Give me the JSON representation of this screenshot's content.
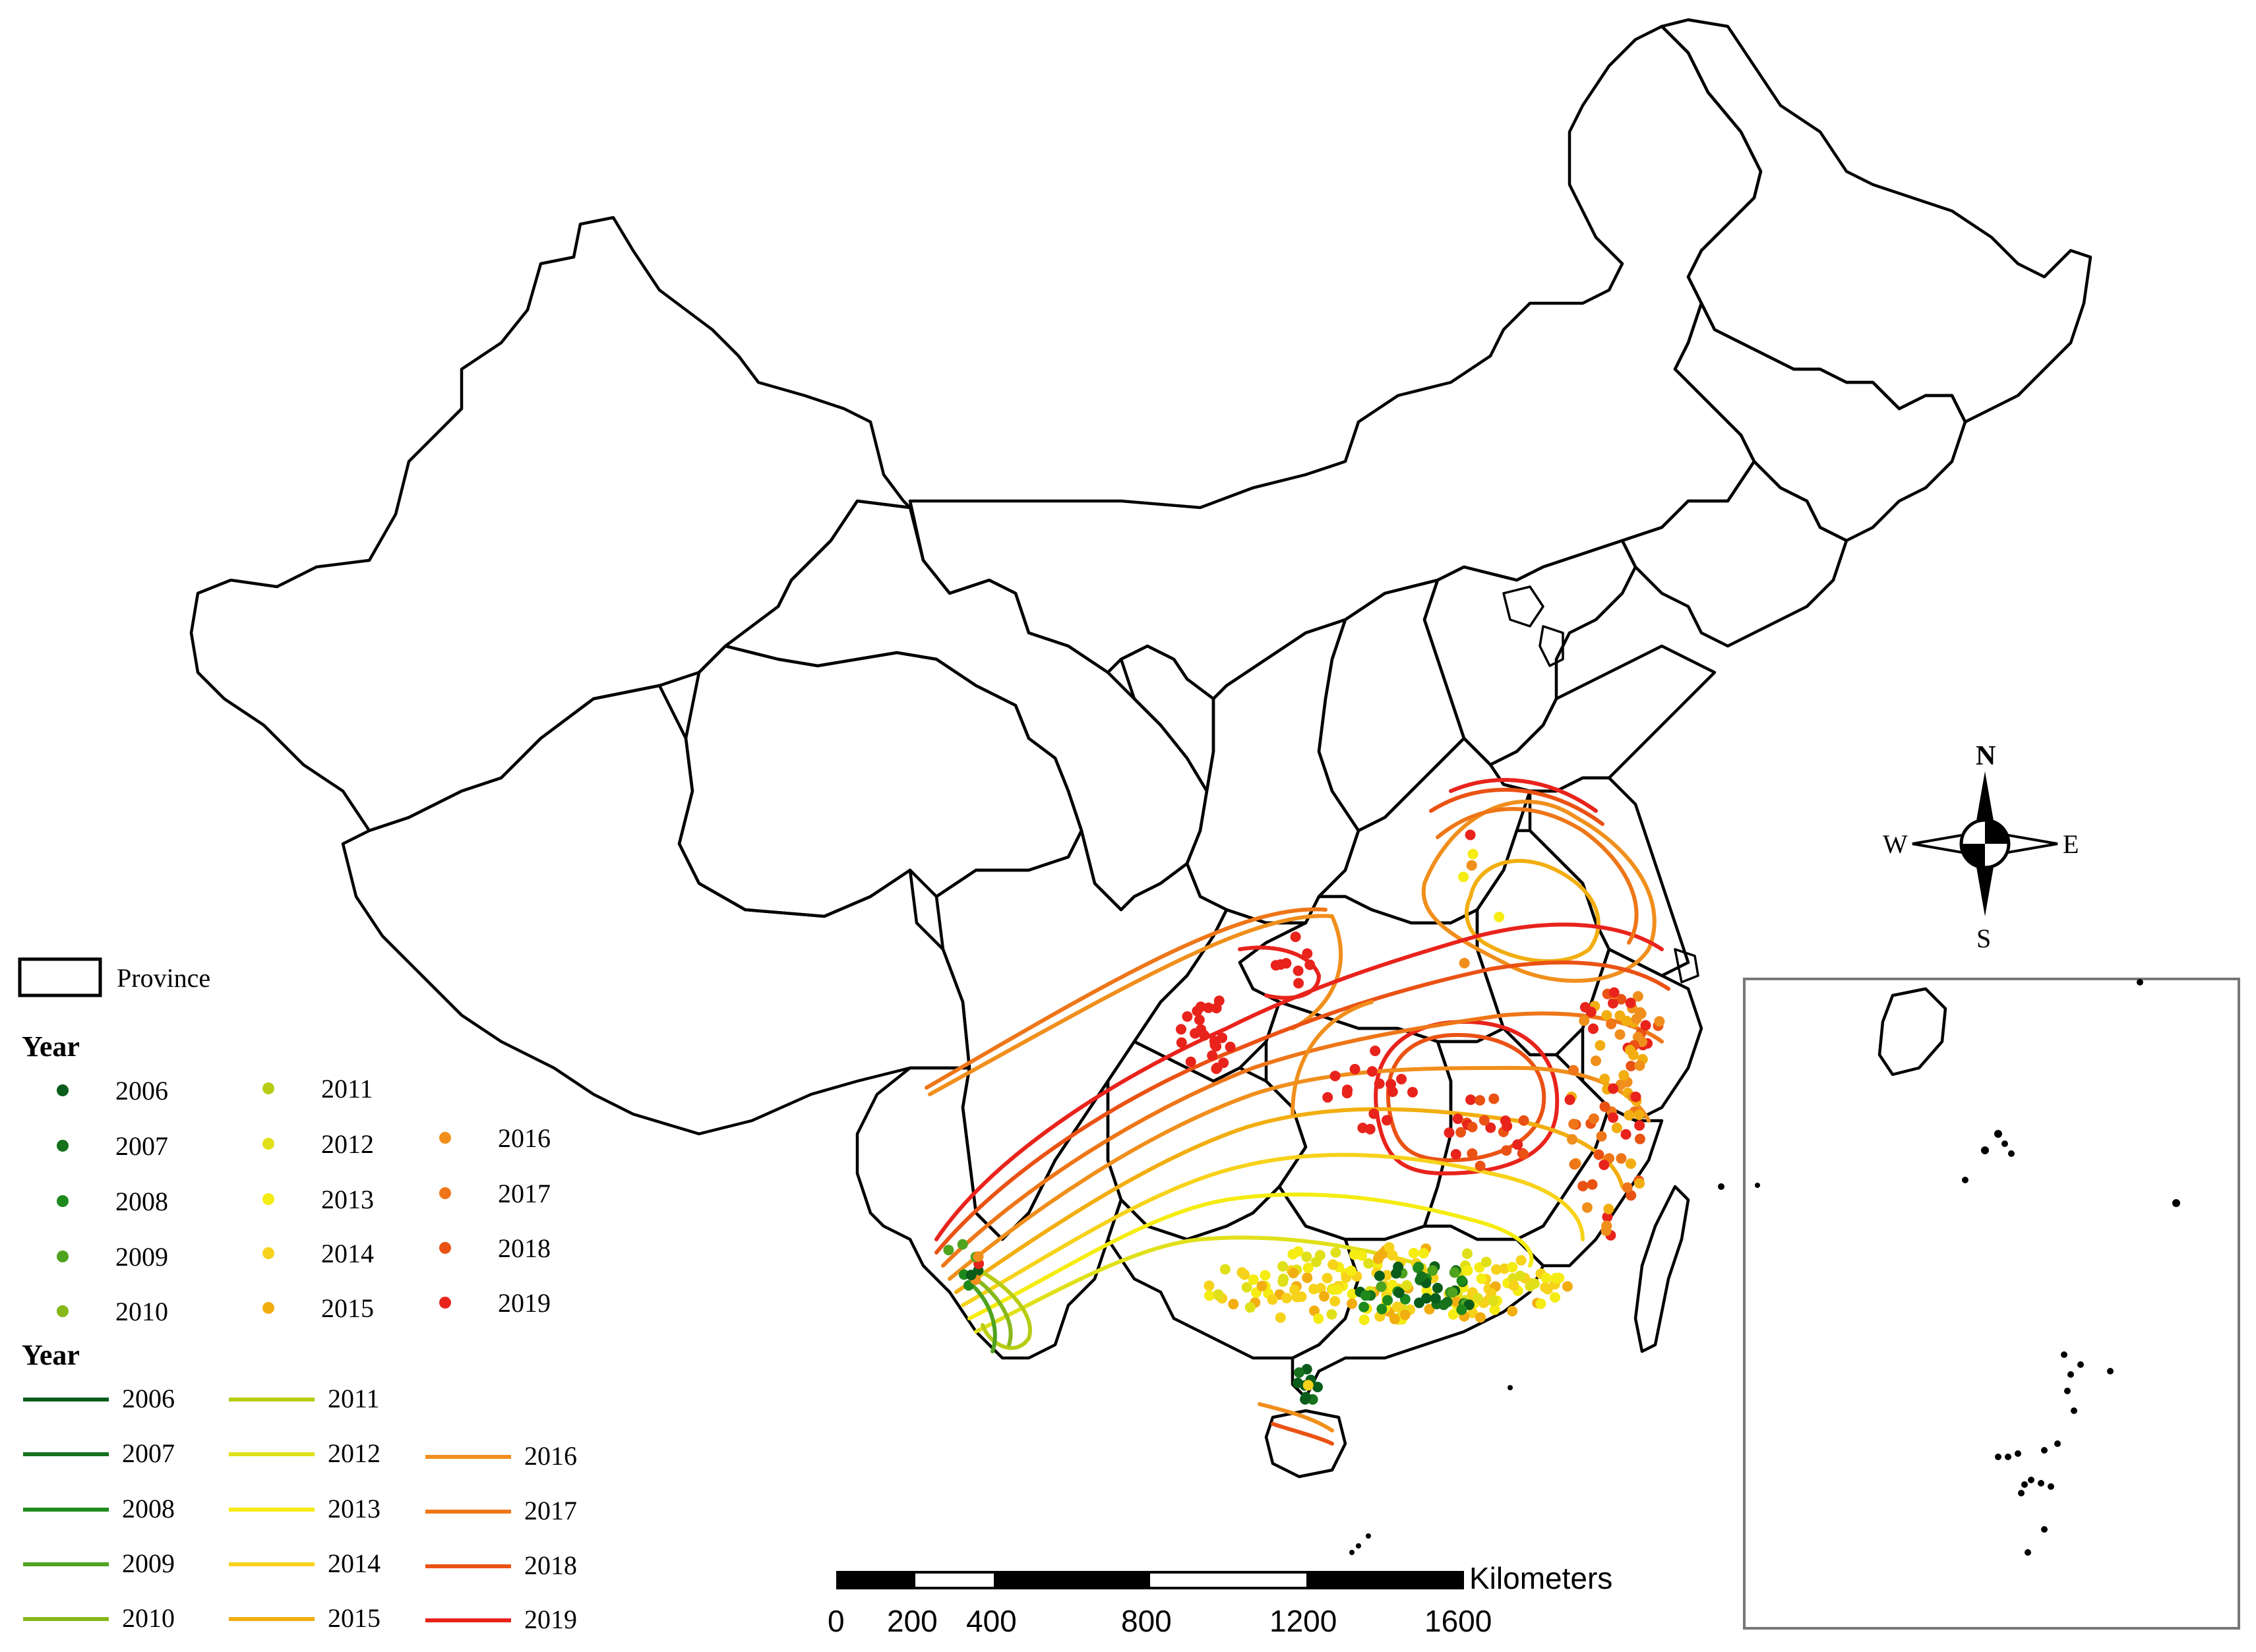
{
  "legend": {
    "province_label": "Province",
    "points_heading": "Year",
    "lines_heading": "Year",
    "years": [
      "2006",
      "2007",
      "2008",
      "2009",
      "2010",
      "2011",
      "2012",
      "2013",
      "2014",
      "2015",
      "2016",
      "2017",
      "2018",
      "2019"
    ],
    "colors": {
      "2006": "#0a5c1a",
      "2007": "#16721c",
      "2008": "#1e8a1c",
      "2009": "#4ea31f",
      "2010": "#86b81a",
      "2011": "#b8cc14",
      "2012": "#e0e01a",
      "2013": "#f5ec12",
      "2014": "#f7d21a",
      "2015": "#f2ae10",
      "2016": "#f08f1c",
      "2017": "#ee7618",
      "2018": "#ea5214",
      "2019": "#e8231c"
    }
  },
  "scale_bar": {
    "unit": "Kilometers",
    "ticks": [
      "0",
      "200",
      "400",
      "800",
      "1200",
      "1600"
    ]
  },
  "compass": {
    "north": "N",
    "south": "S",
    "east": "E",
    "west": "W"
  }
}
